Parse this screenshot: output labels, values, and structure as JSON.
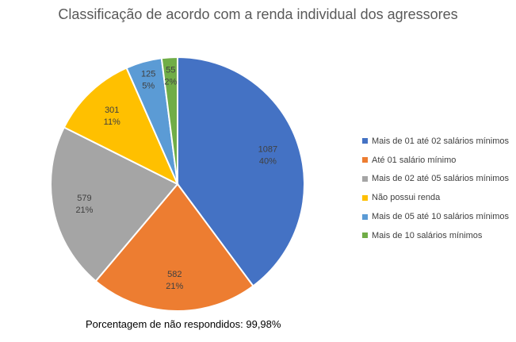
{
  "chart_data": {
    "type": "pie",
    "title": "Classificação de acordo com a renda individual dos agressores",
    "slices": [
      {
        "name": "Mais de 01 até 02 salários mínimos",
        "value": 1087,
        "percent_label": "40%",
        "color": "#4472C4"
      },
      {
        "name": "Até 01 salário mínimo",
        "value": 582,
        "percent_label": "21%",
        "color": "#ED7D31"
      },
      {
        "name": "Mais de 02 até 05 salários mínimos",
        "value": 579,
        "percent_label": "21%",
        "color": "#A5A5A5"
      },
      {
        "name": "Não possui renda",
        "value": 301,
        "percent_label": "11%",
        "color": "#FFC000"
      },
      {
        "name": "Mais de 05 até 10 salários mínimos",
        "value": 125,
        "percent_label": "5%",
        "color": "#5B9BD5"
      },
      {
        "name": "Mais de 10 salários mínimos",
        "value": 55,
        "percent_label": "2%",
        "color": "#70AD47"
      }
    ],
    "legend": {
      "position": "right"
    }
  },
  "footnote": "Porcentagem de não respondidos: 99,98%"
}
